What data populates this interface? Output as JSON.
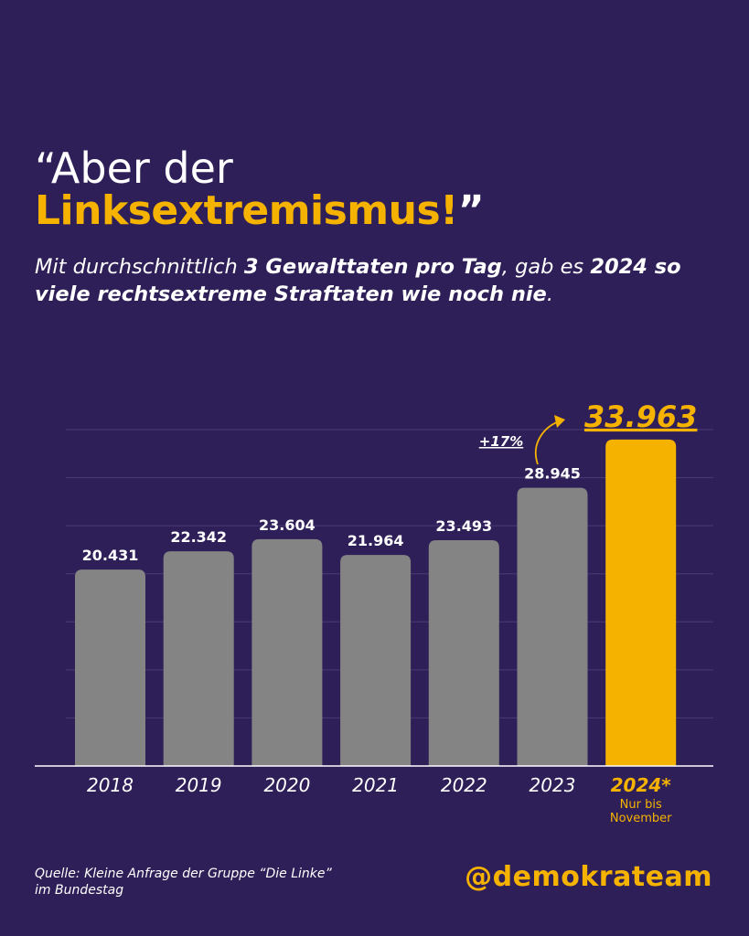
{
  "header": {
    "quote_open": "“",
    "title_line1": "Aber der",
    "title_line2": "Linksextremismus!",
    "quote_close": "”",
    "subtitle_part1": "Mit durchschnittlich ",
    "subtitle_bold1": "3 Gewalttaten pro Tag",
    "subtitle_part2": ", gab es ",
    "subtitle_bold2": "2024 so viele rechtsextreme Straftaten wie noch nie",
    "subtitle_part3": "."
  },
  "chart_data": {
    "type": "bar",
    "categories": [
      "2018",
      "2019",
      "2020",
      "2021",
      "2022",
      "2023",
      "2024"
    ],
    "values": [
      20431,
      22342,
      23604,
      21964,
      23493,
      28945,
      33963
    ],
    "value_labels": [
      "20.431",
      "22.342",
      "23.604",
      "21.964",
      "23.493",
      "28.945",
      "33.963"
    ],
    "highlight_index": 6,
    "highlight_category_suffix": "*",
    "highlight_note_line1": "Nur bis",
    "highlight_note_line2": "November",
    "change_label": "+17%",
    "ylim": [
      0,
      35000
    ],
    "grid": true,
    "colors": {
      "bar": "#848484",
      "highlight": "#f5b300",
      "gridline": "#4a3b72",
      "baseline": "#ffffff"
    }
  },
  "footer": {
    "source_line1": "Quelle: Kleine Anfrage der Gruppe “Die Linke”",
    "source_line2": "im Bundestag",
    "handle": "@demokrateam"
  }
}
